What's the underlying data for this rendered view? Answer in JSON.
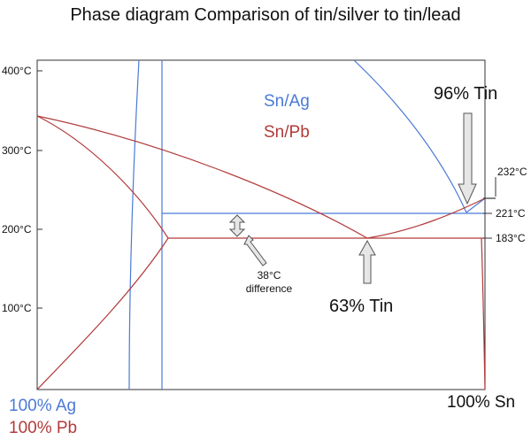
{
  "title": "Phase diagram Comparison of tin/silver to tin/lead",
  "colors": {
    "ag": "#4a7ad6",
    "pb": "#b23a3a",
    "axis": "#333333",
    "arrow_fill": "#e6e6e6"
  },
  "temperature_ticks": [
    {
      "value": 400,
      "label": "400°C"
    },
    {
      "value": 300,
      "label": "300°C"
    },
    {
      "value": 200,
      "label": "200°C"
    },
    {
      "value": 100,
      "label": "100°C"
    }
  ],
  "right_labels": [
    {
      "value": 232,
      "label": "232°C"
    },
    {
      "value": 221,
      "label": "221°C"
    },
    {
      "value": 183,
      "label": "183°C"
    }
  ],
  "legend": {
    "ag": "Sn/Ag",
    "pb": "Sn/Pb"
  },
  "annotations": {
    "ag_eutectic": "96% Tin",
    "pb_eutectic": "63% Tin",
    "difference_line1": "38°C",
    "difference_line2": "difference"
  },
  "corners": {
    "left_ag": "100% Ag",
    "left_pb": "100% Pb",
    "right": "100% Sn"
  }
}
